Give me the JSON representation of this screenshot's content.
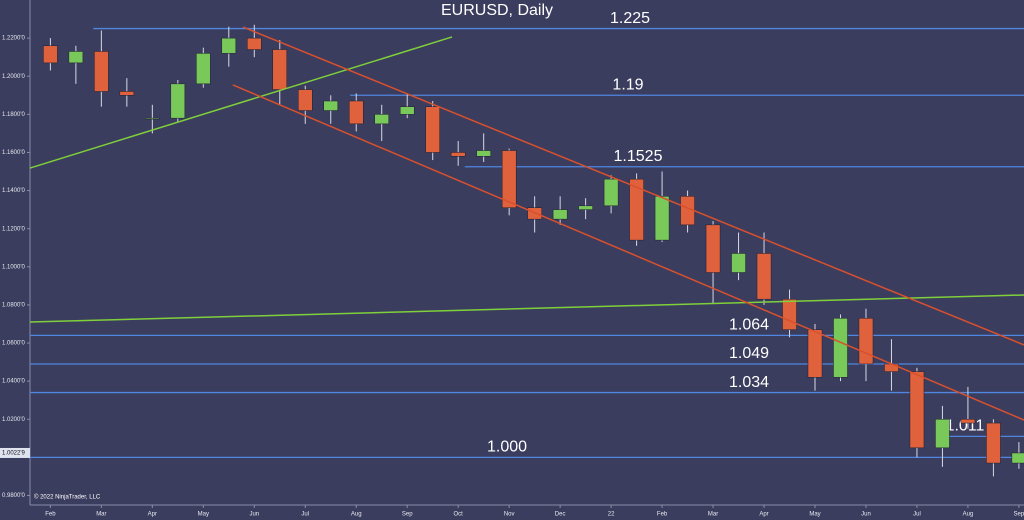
{
  "chart_data": {
    "type": "candlestick",
    "title": "EURUSD, Daily",
    "copyright": "© 2022 NinjaTrader, LLC",
    "up_color": "#79c95a",
    "down_color": "#e0623c",
    "xlim": [
      -0.4,
      19.1
    ],
    "ylim": [
      0.975,
      1.24
    ],
    "xticks": [
      {
        "value": 0,
        "label": "Feb"
      },
      {
        "value": 1,
        "label": "Mar"
      },
      {
        "value": 2,
        "label": "Apr"
      },
      {
        "value": 3,
        "label": "May"
      },
      {
        "value": 4,
        "label": "Jun"
      },
      {
        "value": 5,
        "label": "Jul"
      },
      {
        "value": 6,
        "label": "Aug"
      },
      {
        "value": 7,
        "label": "Sep"
      },
      {
        "value": 8,
        "label": "Oct"
      },
      {
        "value": 9,
        "label": "Nov"
      },
      {
        "value": 10,
        "label": "Dec"
      },
      {
        "value": 11,
        "label": "22"
      },
      {
        "value": 12,
        "label": "Feb"
      },
      {
        "value": 13,
        "label": "Mar"
      },
      {
        "value": 14,
        "label": "Apr"
      },
      {
        "value": 15,
        "label": "May"
      },
      {
        "value": 16,
        "label": "Jun"
      },
      {
        "value": 17,
        "label": "Jul"
      },
      {
        "value": 18,
        "label": "Aug"
      },
      {
        "value": 19,
        "label": "Sep"
      }
    ],
    "yticks": [
      {
        "value": 1.22,
        "label": "1.2200'0"
      },
      {
        "value": 1.2,
        "label": "1.2000'0"
      },
      {
        "value": 1.18,
        "label": "1.1800'0"
      },
      {
        "value": 1.16,
        "label": "1.1600'0"
      },
      {
        "value": 1.14,
        "label": "1.1400'0"
      },
      {
        "value": 1.12,
        "label": "1.1200'0"
      },
      {
        "value": 1.1,
        "label": "1.1000'0"
      },
      {
        "value": 1.08,
        "label": "1.0800'0"
      },
      {
        "value": 1.06,
        "label": "1.0600'0"
      },
      {
        "value": 1.04,
        "label": "1.0400'0"
      },
      {
        "value": 1.02,
        "label": "1.0200'0"
      },
      {
        "value": 0.98,
        "label": "0.9800'0"
      }
    ],
    "last_price": {
      "value": 1.0023,
      "label": "1.0022'9"
    },
    "x": [
      0,
      0.5,
      1,
      1.5,
      2,
      2.5,
      3,
      3.5,
      4,
      4.5,
      5,
      5.5,
      6,
      6.5,
      7,
      7.5,
      8,
      8.5,
      9,
      9.5,
      10,
      10.5,
      11,
      11.5,
      12,
      12.5,
      13,
      13.5,
      14,
      14.5,
      15,
      15.5,
      16,
      16.5,
      17,
      17.5,
      18,
      18.5,
      19
    ],
    "open": [
      1.216,
      1.207,
      1.213,
      1.192,
      1.178,
      1.178,
      1.196,
      1.212,
      1.22,
      1.214,
      1.193,
      1.182,
      1.187,
      1.175,
      1.18,
      1.184,
      1.16,
      1.158,
      1.161,
      1.131,
      1.125,
      1.13,
      1.132,
      1.146,
      1.114,
      1.137,
      1.122,
      1.097,
      1.107,
      1.083,
      1.067,
      1.042,
      1.073,
      1.049,
      1.045,
      1.005,
      1.02,
      1.018,
      0.997
    ],
    "high": [
      1.22,
      1.216,
      1.224,
      1.199,
      1.185,
      1.198,
      1.215,
      1.226,
      1.227,
      1.219,
      1.195,
      1.19,
      1.191,
      1.185,
      1.191,
      1.187,
      1.166,
      1.17,
      1.162,
      1.137,
      1.137,
      1.136,
      1.148,
      1.149,
      1.15,
      1.14,
      1.124,
      1.118,
      1.118,
      1.088,
      1.07,
      1.075,
      1.078,
      1.062,
      1.047,
      1.027,
      1.037,
      1.02,
      1.008
    ],
    "low": [
      1.203,
      1.196,
      1.184,
      1.184,
      1.17,
      1.176,
      1.194,
      1.205,
      1.21,
      1.185,
      1.175,
      1.175,
      1.171,
      1.166,
      1.178,
      1.156,
      1.153,
      1.155,
      1.127,
      1.118,
      1.122,
      1.125,
      1.128,
      1.111,
      1.113,
      1.118,
      1.081,
      1.093,
      1.08,
      1.063,
      1.035,
      1.04,
      1.04,
      1.035,
      1.0,
      0.995,
      1.015,
      0.99,
      0.994
    ],
    "close": [
      1.207,
      1.213,
      1.192,
      1.19,
      1.178,
      1.196,
      1.212,
      1.22,
      1.214,
      1.193,
      1.182,
      1.187,
      1.175,
      1.18,
      1.184,
      1.16,
      1.158,
      1.161,
      1.131,
      1.125,
      1.13,
      1.132,
      1.146,
      1.114,
      1.137,
      1.122,
      1.097,
      1.107,
      1.083,
      1.067,
      1.042,
      1.073,
      1.049,
      1.045,
      1.005,
      1.02,
      1.018,
      0.997,
      1.0023
    ],
    "levels": [
      {
        "value": 1.225,
        "label": "1.225",
        "start": 0.84
      },
      {
        "value": 1.19,
        "label": "1.19",
        "start": 5.88
      },
      {
        "value": 1.1525,
        "label": "1.1525",
        "start": 8.13
      },
      {
        "value": 1.064,
        "label": "1.064",
        "start": -0.4
      },
      {
        "value": 1.049,
        "label": "1.049",
        "start": -0.4
      },
      {
        "value": 1.034,
        "label": "1.034",
        "start": -0.4
      },
      {
        "value": 1.0,
        "label": "1.000",
        "start": -0.4
      },
      {
        "value": 1.011,
        "label": "1.011",
        "start": 17.45
      }
    ],
    "level_color": "#4f86e0",
    "trendlines": [
      {
        "x": [
          -0.4,
          7.88
        ],
        "y": [
          1.1518,
          1.2206
        ],
        "color": "#7fd03a"
      },
      {
        "x": [
          -0.4,
          19.1
        ],
        "y": [
          1.071,
          1.0852
        ],
        "color": "#7fd03a"
      },
      {
        "x": [
          3.78,
          19.1
        ],
        "y": [
          1.2258,
          1.059
        ],
        "color": "#d8502e"
      },
      {
        "x": [
          3.58,
          19.1
        ],
        "y": [
          1.1954,
          1.0196
        ],
        "color": "#d8502e"
      }
    ]
  }
}
